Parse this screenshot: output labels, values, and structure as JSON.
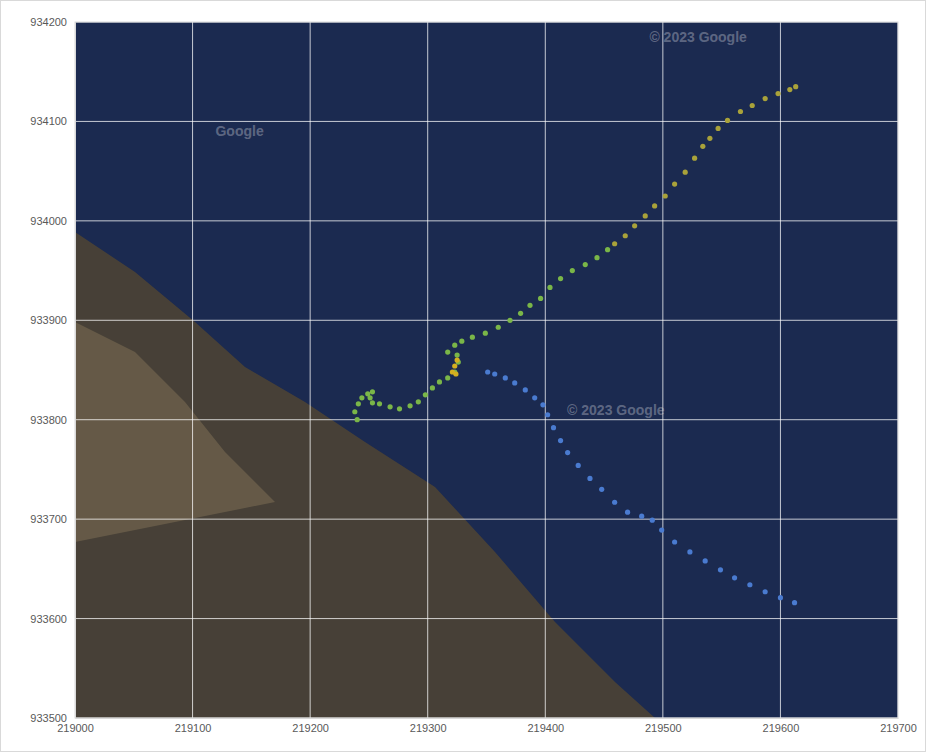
{
  "chart_data": {
    "type": "scatter",
    "xlim": [
      219000,
      219700
    ],
    "ylim": [
      933500,
      934200
    ],
    "xticks": [
      219000,
      219100,
      219200,
      219300,
      219400,
      219500,
      219600,
      219700
    ],
    "yticks": [
      933500,
      933600,
      933700,
      933800,
      933900,
      934000,
      934100,
      934200
    ],
    "grid": true,
    "series": [
      {
        "color": "#7ab648",
        "marker": "circle",
        "x": [
          219240,
          219238,
          219241,
          219244,
          219249,
          219253,
          219251,
          219253,
          219259,
          219268,
          219276,
          219285,
          219292,
          219298,
          219304,
          219310,
          219317,
          219323,
          219326,
          219325,
          219317,
          219323,
          219329,
          219338,
          219349,
          219360,
          219370,
          219379,
          219387,
          219396,
          219404,
          219413,
          219423,
          219434,
          219444,
          219453
        ],
        "values": [
          933800,
          933808,
          933816,
          933822,
          933826,
          933828,
          933822,
          933817,
          933816,
          933813,
          933811,
          933814,
          933818,
          933825,
          933832,
          933838,
          933842,
          933848,
          933858,
          933865,
          933868,
          933875,
          933879,
          933883,
          933887,
          933893,
          933900,
          933907,
          933915,
          933922,
          933933,
          933942,
          933950,
          933956,
          933963,
          933971
        ]
      },
      {
        "color": "#a9a23a",
        "marker": "circle",
        "x": [
          219459,
          219468,
          219476,
          219485,
          219493,
          219502,
          219510,
          219519,
          219527,
          219534,
          219540,
          219547,
          219555,
          219566,
          219576,
          219587,
          219598,
          219608,
          219613
        ],
        "values": [
          933977,
          933985,
          933995,
          934005,
          934015,
          934025,
          934037,
          934049,
          934063,
          934075,
          934083,
          934093,
          934101,
          934110,
          934116,
          934123,
          934128,
          934132,
          934135
        ]
      },
      {
        "color": "#d4b020",
        "marker": "circle",
        "x": [
          219321,
          219323,
          219325,
          219324
        ],
        "values": [
          933848,
          933854,
          933860,
          933846
        ]
      },
      {
        "color": "#4a7bd0",
        "marker": "circle",
        "x": [
          219351,
          219357,
          219366,
          219374,
          219383,
          219391,
          219398,
          219402,
          219407,
          219413,
          219419,
          219428,
          219438,
          219448,
          219459,
          219470,
          219482,
          219491,
          219499,
          219510,
          219523,
          219536,
          219549,
          219561,
          219574,
          219587,
          219600,
          219612
        ],
        "values": [
          933848,
          933846,
          933842,
          933837,
          933830,
          933822,
          933815,
          933805,
          933792,
          933779,
          933767,
          933754,
          933741,
          933730,
          933717,
          933707,
          933703,
          933699,
          933689,
          933677,
          933667,
          933658,
          933649,
          933641,
          933634,
          933627,
          933621,
          933616
        ]
      }
    ],
    "annotations": [
      {
        "text": "Google",
        "x": 219140,
        "y": 934085
      },
      {
        "text": "© 2023 Google",
        "x": 219530,
        "y": 934180
      },
      {
        "text": "© 2023 Google",
        "x": 219460,
        "y": 933805
      }
    ]
  }
}
